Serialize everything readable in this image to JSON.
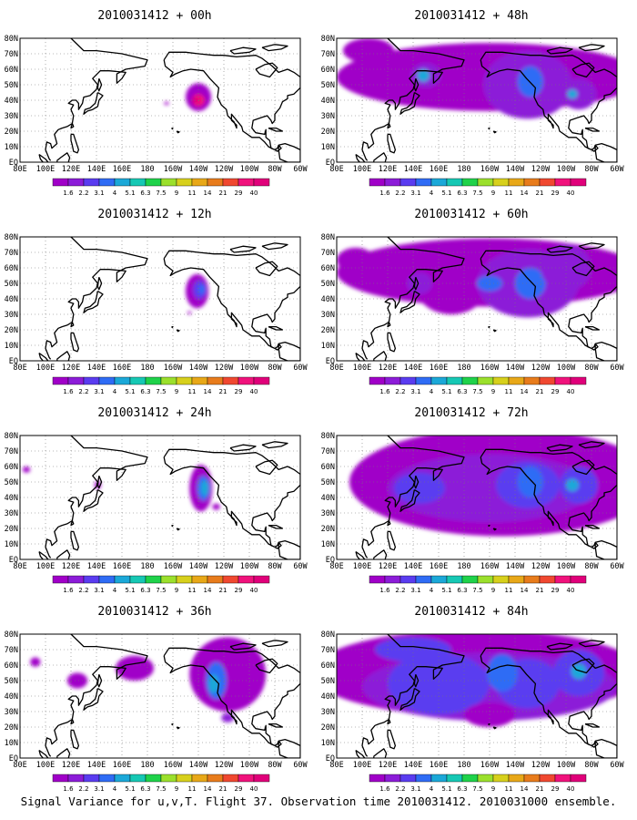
{
  "panels": [
    {
      "title": "2010031412 + 00h",
      "level": 0
    },
    {
      "title": "2010031412 + 12h",
      "level": 1
    },
    {
      "title": "2010031412 + 24h",
      "level": 2
    },
    {
      "title": "2010031412 + 36h",
      "level": 3
    },
    {
      "title": "2010031412 + 48h",
      "level": 4
    },
    {
      "title": "2010031412 + 60h",
      "level": 5
    },
    {
      "title": "2010031412 + 72h",
      "level": 6
    },
    {
      "title": "2010031412 + 84h",
      "level": 7
    }
  ],
  "lat_labels": [
    "80N",
    "70N",
    "60N",
    "50N",
    "40N",
    "30N",
    "20N",
    "10N",
    "EQ"
  ],
  "lon_labels": [
    "80E",
    "100E",
    "120E",
    "140E",
    "160E",
    "180",
    "160W",
    "140W",
    "120W",
    "100W",
    "80W",
    "60W"
  ],
  "colorbar": {
    "labels": [
      "1.6",
      "2.2",
      "3.1",
      "4",
      "5.1",
      "6.3",
      "7.5",
      "9",
      "11",
      "14",
      "21",
      "29",
      "40"
    ],
    "colors": [
      "#a000c8",
      "#8c1cd8",
      "#5a3cf0",
      "#2f6cf5",
      "#1ba8d8",
      "#16c8b4",
      "#1fd24a",
      "#9be02c",
      "#d7d01c",
      "#e8a818",
      "#e87c1c",
      "#f04830",
      "#f0127c",
      "#e0007a"
    ]
  },
  "caption": "Signal Variance for u,v,T. Flight 37. Observation time 2010031412. 2010031000 ensemble."
}
